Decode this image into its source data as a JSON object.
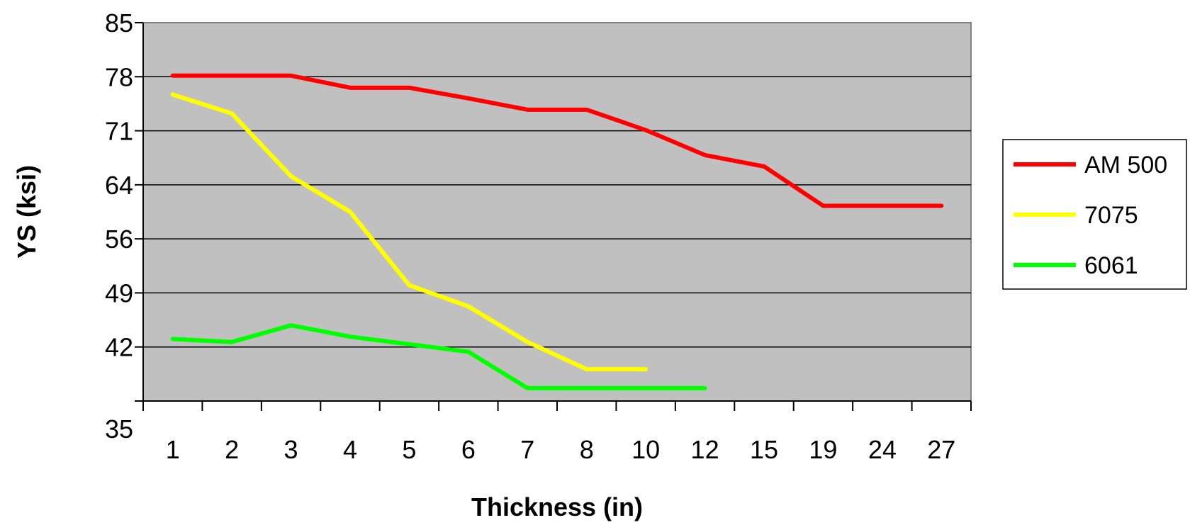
{
  "chart_data": {
    "type": "line",
    "title": "",
    "xlabel": "Thickness (in)",
    "ylabel": "YS (ksi)",
    "categories": [
      "1",
      "2",
      "3",
      "4",
      "5",
      "6",
      "7",
      "8",
      "10",
      "12",
      "15",
      "19",
      "24",
      "27"
    ],
    "y_ticks": [
      "85",
      "78",
      "71",
      "64",
      "56",
      "49",
      "42",
      "35"
    ],
    "ylim": [
      35,
      85
    ],
    "grid": true,
    "legend": "right",
    "plot_background": "#c0c0c0",
    "series": [
      {
        "name": "AM 500",
        "color": "#ff0000",
        "values": [
          78,
          78,
          78,
          76.4,
          76.4,
          75,
          73.5,
          73.5,
          70.8,
          67.5,
          66,
          60.8,
          60.8,
          60.8
        ]
      },
      {
        "name": "7075",
        "color": "#ffff00",
        "values": [
          75.5,
          73,
          64.7,
          60,
          50.3,
          47.5,
          42.8,
          39.2,
          39.2,
          null,
          null,
          null,
          null,
          null
        ]
      },
      {
        "name": "6061",
        "color": "#00ff00",
        "values": [
          43.2,
          42.8,
          45,
          43.5,
          42.5,
          41.5,
          36.7,
          36.7,
          36.7,
          36.7,
          null,
          null,
          null,
          null
        ]
      }
    ]
  }
}
